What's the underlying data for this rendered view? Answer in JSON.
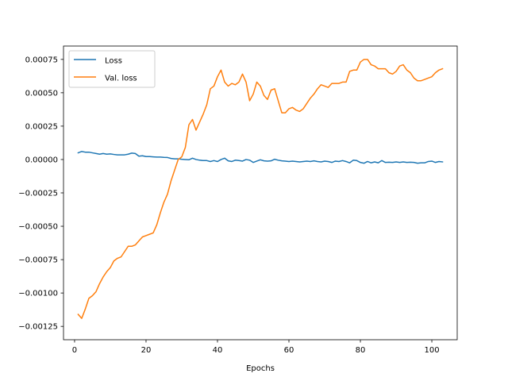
{
  "chart_data": {
    "type": "line",
    "title": "",
    "xlabel": "Epochs",
    "ylabel": "",
    "xlim": [
      -3.1,
      107.1
    ],
    "ylim": [
      -0.00135,
      0.00085
    ],
    "xticks": [
      0,
      20,
      40,
      60,
      80,
      100
    ],
    "yticks": [
      -0.00125,
      -0.001,
      -0.00075,
      -0.0005,
      -0.00025,
      0.0,
      0.00025,
      0.0005,
      0.00075
    ],
    "ytick_labels": [
      "−0.00125",
      "−0.00100",
      "−0.00075",
      "−0.00050",
      "−0.00025",
      "0.00000",
      "0.00025",
      "0.00050",
      "0.00075"
    ],
    "grid": false,
    "legend_position": "top-left",
    "x": [
      1,
      2,
      3,
      4,
      5,
      6,
      7,
      8,
      9,
      10,
      11,
      12,
      13,
      14,
      15,
      16,
      17,
      18,
      19,
      20,
      21,
      22,
      23,
      24,
      25,
      26,
      27,
      28,
      29,
      30,
      31,
      32,
      33,
      34,
      35,
      36,
      37,
      38,
      39,
      40,
      41,
      42,
      43,
      44,
      45,
      46,
      47,
      48,
      49,
      50,
      51,
      52,
      53,
      54,
      55,
      56,
      57,
      58,
      59,
      60,
      61,
      62,
      63,
      64,
      65,
      66,
      67,
      68,
      69,
      70,
      71,
      72,
      73,
      74,
      75,
      76,
      77,
      78,
      79,
      80,
      81,
      82,
      83,
      84,
      85,
      86,
      87,
      88,
      89,
      90,
      91,
      92,
      93,
      94,
      95,
      96,
      97,
      98,
      99,
      100,
      101,
      102,
      103
    ],
    "series": [
      {
        "name": "Loss",
        "color": "#1f77b4",
        "values": [
          5e-05,
          6e-05,
          5.5e-05,
          5.5e-05,
          5e-05,
          4.5e-05,
          4e-05,
          4.5e-05,
          4e-05,
          4.2e-05,
          3.8e-05,
          3.5e-05,
          3.5e-05,
          3.5e-05,
          4e-05,
          4.8e-05,
          4.5e-05,
          2.5e-05,
          2.8e-05,
          2.2e-05,
          2.2e-05,
          2e-05,
          1.8e-05,
          1.8e-05,
          1.6e-05,
          1.5e-05,
          8e-06,
          5e-06,
          5e-06,
          2e-06,
          0.0,
          -2e-06,
          1e-05,
          0.0,
          -5e-06,
          -8e-06,
          -8e-06,
          -1.5e-05,
          -8e-06,
          -1.5e-05,
          0.0,
          1e-05,
          -1e-05,
          -1.5e-05,
          -5e-06,
          -8e-06,
          -1.2e-05,
          0.0,
          -5e-06,
          -2.2e-05,
          -1.2e-05,
          -2e-06,
          -1e-05,
          -1.2e-05,
          -1e-05,
          2e-06,
          -5e-06,
          -1e-05,
          -1.2e-05,
          -1.5e-05,
          -1.2e-05,
          -1.5e-05,
          -1.8e-05,
          -1.5e-05,
          -1.2e-05,
          -1.5e-05,
          -1e-05,
          -1.5e-05,
          -1.8e-05,
          -1.2e-05,
          -1.5e-05,
          -2.2e-05,
          -1.2e-05,
          -1.5e-05,
          -8e-06,
          -1.5e-05,
          -2.5e-05,
          -5e-06,
          -8e-06,
          -2.2e-05,
          -2.8e-05,
          -1.5e-05,
          -2.5e-05,
          -1.8e-05,
          -2.5e-05,
          -8e-06,
          -2.2e-05,
          -2e-05,
          -2.2e-05,
          -1.8e-05,
          -2.2e-05,
          -1.8e-05,
          -2.2e-05,
          -2e-05,
          -2.2e-05,
          -2.8e-05,
          -2.5e-05,
          -2.5e-05,
          -1.5e-05,
          -1.2e-05,
          -2.2e-05,
          -1.5e-05,
          -1.8e-05
        ]
      },
      {
        "name": "Val. loss",
        "color": "#ff7f0e",
        "values": [
          -0.00116,
          -0.00119,
          -0.00112,
          -0.00104,
          -0.00102,
          -0.00099,
          -0.00093,
          -0.00088,
          -0.00084,
          -0.00081,
          -0.00076,
          -0.00074,
          -0.00073,
          -0.00069,
          -0.00065,
          -0.00065,
          -0.00064,
          -0.00061,
          -0.00058,
          -0.00057,
          -0.00056,
          -0.00055,
          -0.00049,
          -0.0004,
          -0.00032,
          -0.00026,
          -0.00016,
          -8e-05,
          0.0,
          2e-05,
          9e-05,
          0.00026,
          0.0003,
          0.00022,
          0.00028,
          0.00034,
          0.00041,
          0.00053,
          0.00055,
          0.00062,
          0.00067,
          0.00058,
          0.00055,
          0.00057,
          0.00056,
          0.00058,
          0.00064,
          0.00058,
          0.00044,
          0.00049,
          0.00058,
          0.00055,
          0.00048,
          0.00045,
          0.00052,
          0.00053,
          0.00044,
          0.00035,
          0.00035,
          0.00038,
          0.00039,
          0.00037,
          0.00036,
          0.00038,
          0.00042,
          0.00046,
          0.00049,
          0.00053,
          0.00056,
          0.00055,
          0.00054,
          0.00057,
          0.00057,
          0.00057,
          0.00058,
          0.00058,
          0.00066,
          0.00067,
          0.00067,
          0.00073,
          0.00075,
          0.00075,
          0.00071,
          0.0007,
          0.00068,
          0.00068,
          0.00068,
          0.00065,
          0.00064,
          0.00066,
          0.0007,
          0.00071,
          0.00067,
          0.00065,
          0.00061,
          0.00059,
          0.00059,
          0.0006,
          0.00061,
          0.00062,
          0.00065,
          0.00067,
          0.00068
        ]
      }
    ]
  }
}
